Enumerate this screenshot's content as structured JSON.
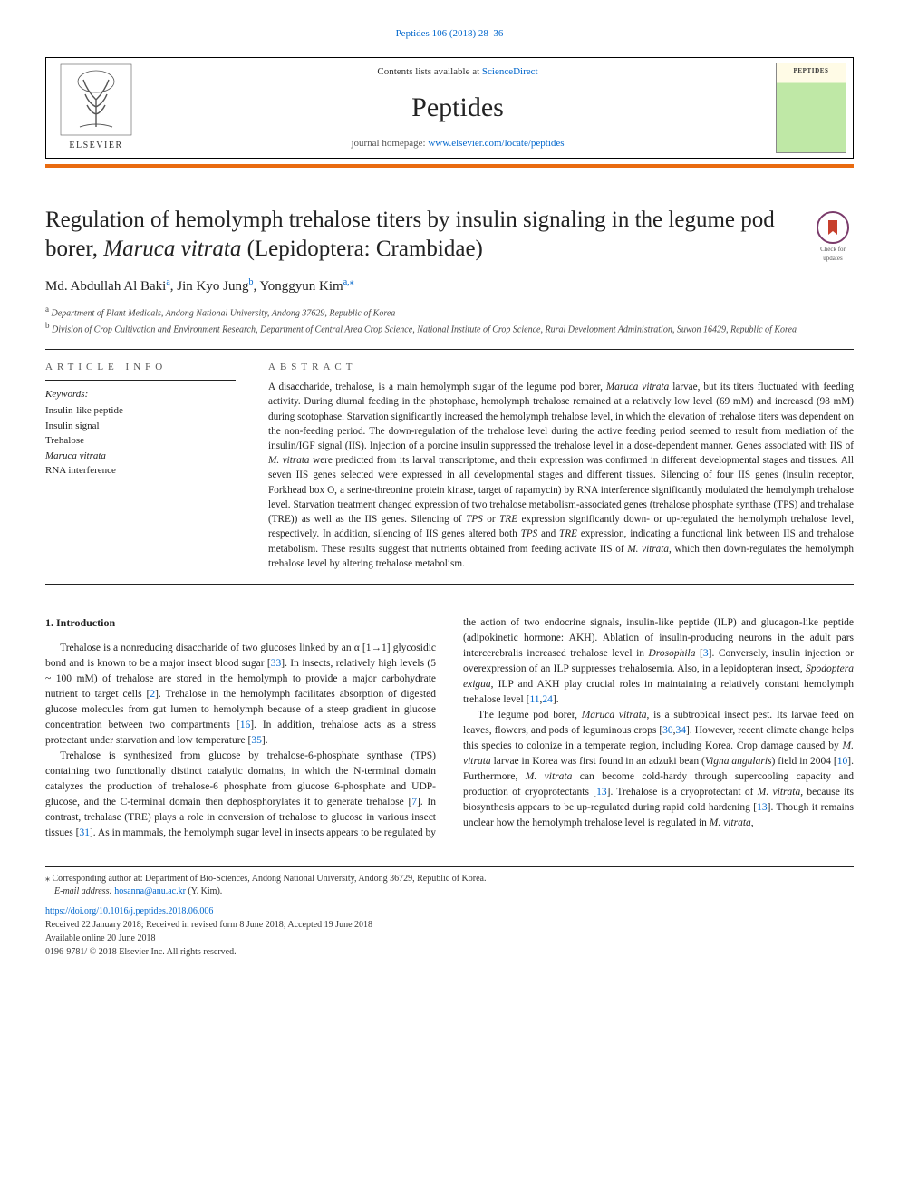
{
  "header": {
    "citation": "Peptides 106 (2018) 28–36",
    "contents_prefix": "Contents lists available at ",
    "contents_link": "ScienceDirect",
    "journal": "Peptides",
    "homepage_prefix": "journal homepage: ",
    "homepage_link": "www.elsevier.com/locate/peptides",
    "publisher": "ELSEVIER",
    "cover_label": "PEPTIDES",
    "colors": {
      "orange": "#e96b10",
      "link": "#0066cc",
      "text": "#222222"
    }
  },
  "badge": {
    "line1": "Check for",
    "line2": "updates"
  },
  "title_parts": {
    "pre": "Regulation of hemolymph trehalose titers by insulin signaling in the legume pod borer, ",
    "species": "Maruca vitrata",
    "post": " (Lepidoptera: Crambidae)"
  },
  "authors": {
    "a1": "Md. Abdullah Al Baki",
    "a1_aff": "a",
    "a2": "Jin Kyo Jung",
    "a2_aff": "b",
    "a3": "Yonggyun Kim",
    "a3_aff": "a,",
    "a3_star": "⁎"
  },
  "affiliations": {
    "a": "Department of Plant Medicals, Andong National University, Andong 37629, Republic of Korea",
    "b": "Division of Crop Cultivation and Environment Research, Department of Central Area Crop Science, National Institute of Crop Science, Rural Development Administration, Suwon 16429, Republic of Korea"
  },
  "info": {
    "heading": "ARTICLE INFO",
    "kw_label": "Keywords:",
    "keywords": [
      "Insulin-like peptide",
      "Insulin signal",
      "Trehalose",
      "Maruca vitrata",
      "RNA interference"
    ],
    "kw_italic_idx": 3
  },
  "abstract": {
    "heading": "ABSTRACT",
    "text_parts": [
      {
        "t": "A disaccharide, trehalose, is a main hemolymph sugar of the legume pod borer, "
      },
      {
        "t": "Maruca vitrata",
        "i": true
      },
      {
        "t": " larvae, but its titers fluctuated with feeding activity. During diurnal feeding in the photophase, hemolymph trehalose remained at a relatively low level (69 mM) and increased (98 mM) during scotophase. Starvation significantly increased the hemolymph trehalose level, in which the elevation of trehalose titers was dependent on the non-feeding period. The down-regulation of the trehalose level during the active feeding period seemed to result from mediation of the insulin/IGF signal (IIS). Injection of a porcine insulin suppressed the trehalose level in a dose-dependent manner. Genes associated with IIS of "
      },
      {
        "t": "M. vitrata",
        "i": true
      },
      {
        "t": " were predicted from its larval transcriptome, and their expression was confirmed in different developmental stages and tissues. All seven IIS genes selected were expressed in all developmental stages and different tissues. Silencing of four IIS genes (insulin receptor, Forkhead box O, a serine-threonine protein kinase, target of rapamycin) by RNA interference significantly modulated the hemolymph trehalose level. Starvation treatment changed expression of two trehalose metabolism-associated genes (trehalose phosphate synthase (TPS) and trehalase (TRE)) as well as the IIS genes. Silencing of "
      },
      {
        "t": "TPS",
        "i": true
      },
      {
        "t": " or "
      },
      {
        "t": "TRE",
        "i": true
      },
      {
        "t": " expression significantly down- or up-regulated the hemolymph trehalose level, respectively. In addition, silencing of IIS genes altered both "
      },
      {
        "t": "TPS",
        "i": true
      },
      {
        "t": " and "
      },
      {
        "t": "TRE",
        "i": true
      },
      {
        "t": " expression, indicating a functional link between IIS and trehalose metabolism. These results suggest that nutrients obtained from feeding activate IIS of "
      },
      {
        "t": "M. vitrata",
        "i": true
      },
      {
        "t": ", which then down-regulates the hemolymph trehalose level by altering trehalose metabolism."
      }
    ]
  },
  "intro": {
    "heading": "1. Introduction",
    "p1": [
      {
        "t": "Trehalose is a nonreducing disaccharide of two glucoses linked by an α [1→1] glycosidic bond and is known to be a major insect blood sugar ["
      },
      {
        "t": "33",
        "r": true
      },
      {
        "t": "]. In insects, relatively high levels (5 ~ 100 mM) of trehalose are stored in the hemolymph to provide a major carbohydrate nutrient to target cells ["
      },
      {
        "t": "2",
        "r": true
      },
      {
        "t": "]. Trehalose in the hemolymph facilitates absorption of digested glucose molecules from gut lumen to hemolymph because of a steep gradient in glucose concentration between two compartments ["
      },
      {
        "t": "16",
        "r": true
      },
      {
        "t": "]. In addition, trehalose acts as a stress protectant under starvation and low temperature ["
      },
      {
        "t": "35",
        "r": true
      },
      {
        "t": "]."
      }
    ],
    "p2": [
      {
        "t": "Trehalose is synthesized from glucose by trehalose-6-phosphate synthase (TPS) containing two functionally distinct catalytic domains, in which the N-terminal domain catalyzes the production of trehalose-6 phosphate from glucose 6-phosphate and UDP-glucose, and the C-terminal domain then dephosphorylates it to generate trehalose ["
      },
      {
        "t": "7",
        "r": true
      },
      {
        "t": "]. In contrast, trehalase (TRE) plays a role in conversion of trehalose to glucose in various insect tissues ["
      },
      {
        "t": "31",
        "r": true
      },
      {
        "t": "]. As in mammals, the hemolymph sugar level in insects appears to be regulated by the action of two endocrine signals, insulin-like peptide (ILP) and glucagon-like peptide (adipokinetic hormone: AKH). Ablation of insulin-producing neurons in the adult pars intercerebralis increased trehalose level in "
      },
      {
        "t": "Drosophila",
        "i": true
      },
      {
        "t": " ["
      },
      {
        "t": "3",
        "r": true
      },
      {
        "t": "]. Conversely, insulin injection or overexpression of an ILP suppresses trehalosemia. Also, in a lepidopteran insect, "
      },
      {
        "t": "Spodoptera exigua",
        "i": true
      },
      {
        "t": ", ILP and AKH play crucial roles in maintaining a relatively constant hemolymph trehalose level ["
      },
      {
        "t": "11",
        "r": true
      },
      {
        "t": ","
      },
      {
        "t": "24",
        "r": true
      },
      {
        "t": "]."
      }
    ],
    "p3": [
      {
        "t": "The legume pod borer, "
      },
      {
        "t": "Maruca vitrata",
        "i": true
      },
      {
        "t": ", is a subtropical insect pest. Its larvae feed on leaves, flowers, and pods of leguminous crops ["
      },
      {
        "t": "30",
        "r": true
      },
      {
        "t": ","
      },
      {
        "t": "34",
        "r": true
      },
      {
        "t": "]. However, recent climate change helps this species to colonize in a temperate region, including Korea. Crop damage caused by "
      },
      {
        "t": "M. vitrata",
        "i": true
      },
      {
        "t": " larvae in Korea was first found in an adzuki bean ("
      },
      {
        "t": "Vigna angularis",
        "i": true
      },
      {
        "t": ") field in 2004 ["
      },
      {
        "t": "10",
        "r": true
      },
      {
        "t": "]. Furthermore, "
      },
      {
        "t": "M. vitrata",
        "i": true
      },
      {
        "t": " can become cold-hardy through supercooling capacity and production of cryoprotectants ["
      },
      {
        "t": "13",
        "r": true
      },
      {
        "t": "]. Trehalose is a cryoprotectant of "
      },
      {
        "t": "M. vitrata",
        "i": true
      },
      {
        "t": ", because its biosynthesis appears to be up-regulated during rapid cold hardening ["
      },
      {
        "t": "13",
        "r": true
      },
      {
        "t": "]. Though it remains unclear how the hemolymph trehalose level is regulated in "
      },
      {
        "t": "M. vitrata",
        "i": true
      },
      {
        "t": ","
      }
    ]
  },
  "footnotes": {
    "corr": "Corresponding author at: Department of Bio-Sciences, Andong National University, Andong 36729, Republic of Korea.",
    "email_label": "E-mail address:",
    "email": "hosanna@anu.ac.kr",
    "email_name": "(Y. Kim).",
    "doi": "https://doi.org/10.1016/j.peptides.2018.06.006",
    "received": "Received 22 January 2018; Received in revised form 8 June 2018; Accepted 19 June 2018",
    "online": "Available online 20 June 2018",
    "copyright": "0196-9781/ © 2018 Elsevier Inc. All rights reserved."
  }
}
